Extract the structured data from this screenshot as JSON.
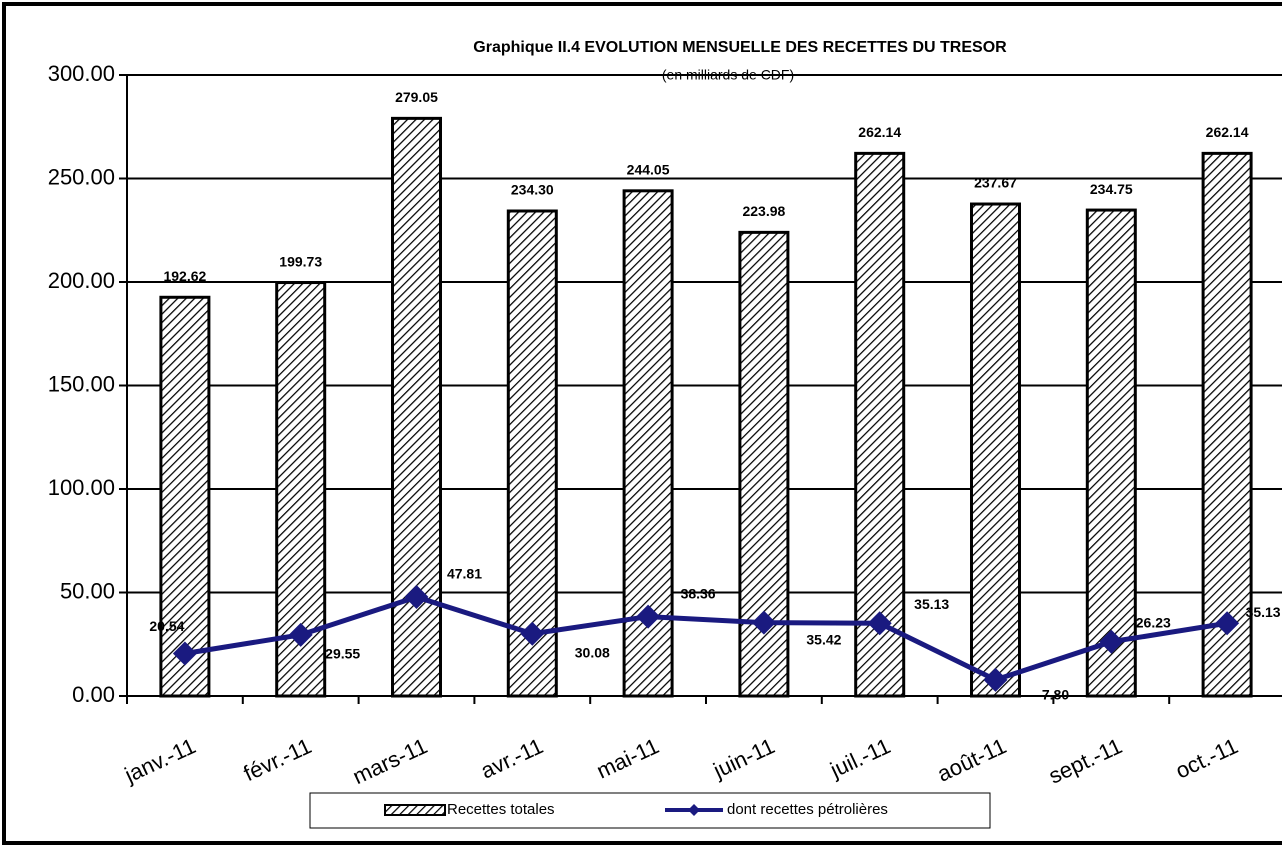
{
  "chart_data": {
    "type": "bar_line",
    "title": "Graphique II.4  EVOLUTION MENSUELLE  DES RECETTES DU TRESOR",
    "subtitle": "(en milliards de CDF)",
    "categories": [
      "janv.-11",
      "févr.-11",
      "mars-11",
      "avr.-11",
      "mai-11",
      "juin-11",
      "juil.-11",
      "août-11",
      "sept.-11",
      "oct.-11"
    ],
    "series": [
      {
        "name": "Recettes totales",
        "type": "bar",
        "color": "#000000",
        "values": [
          192.62,
          199.73,
          279.05,
          234.3,
          244.05,
          223.98,
          262.14,
          237.67,
          234.75,
          262.14
        ],
        "value_labels": [
          "192.62",
          "199.73",
          "279.05",
          "234.30",
          "244.05",
          "223.98",
          "262.14",
          "237.67",
          "234.75",
          "262.14"
        ]
      },
      {
        "name": "dont recettes pétrolières",
        "type": "line",
        "color": "#1a1a80",
        "values": [
          20.54,
          29.55,
          47.81,
          30.08,
          38.36,
          35.42,
          35.13,
          7.8,
          26.23,
          35.13
        ],
        "value_labels": [
          "20.54",
          "29.55",
          "47.81",
          "30.08",
          "38.36",
          "35.42",
          "35.13",
          "7.80",
          "26.23",
          "35.13"
        ]
      }
    ],
    "ylim": [
      0,
      300
    ],
    "yticks": [
      {
        "value": 0,
        "label": "0.00"
      },
      {
        "value": 50,
        "label": "50.00"
      },
      {
        "value": 100,
        "label": "100.00"
      },
      {
        "value": 150,
        "label": "150.00"
      },
      {
        "value": 200,
        "label": "200.00"
      },
      {
        "value": 250,
        "label": "250.00"
      },
      {
        "value": 300,
        "label": "300.00"
      }
    ],
    "grid": true,
    "legend": "bottom"
  }
}
